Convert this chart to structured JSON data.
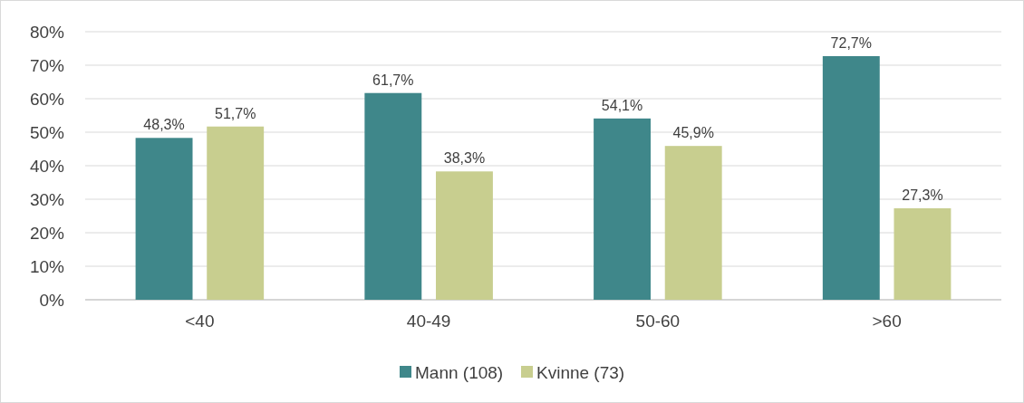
{
  "chart_data": {
    "type": "bar",
    "categories": [
      "<40",
      "40-49",
      "50-60",
      ">60"
    ],
    "series": [
      {
        "name": "Mann (108)",
        "color": "#3f878a",
        "values": [
          48.3,
          61.7,
          54.1,
          72.7
        ],
        "value_labels": [
          "48,3%",
          "61,7%",
          "54,1%",
          "72,7%"
        ]
      },
      {
        "name": "Kvinne (73)",
        "color": "#c8ce8f",
        "values": [
          51.7,
          38.3,
          45.9,
          27.3
        ],
        "value_labels": [
          "51,7%",
          "38,3%",
          "45,9%",
          "27,3%"
        ]
      }
    ],
    "ylim": [
      0,
      80
    ],
    "yticks": [
      {
        "value": 0,
        "label": "0%"
      },
      {
        "value": 10,
        "label": "10%"
      },
      {
        "value": 20,
        "label": "20%"
      },
      {
        "value": 30,
        "label": "30%"
      },
      {
        "value": 40,
        "label": "40%"
      },
      {
        "value": 50,
        "label": "50%"
      },
      {
        "value": 60,
        "label": "60%"
      },
      {
        "value": 70,
        "label": "70%"
      },
      {
        "value": 80,
        "label": "80%"
      }
    ],
    "grid": "y",
    "legend": "bottom"
  }
}
